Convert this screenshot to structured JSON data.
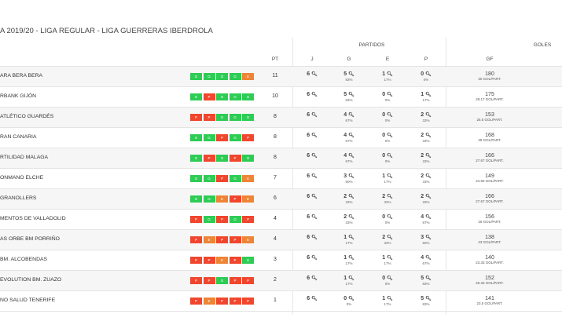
{
  "title": "A 2019/20 - LIGA REGULAR - LIGA GUERRERAS IBERDROLA",
  "headers": {
    "pt": "PT",
    "partidos": "PARTIDOS",
    "goles": "GOLES",
    "j": "J",
    "g": "G",
    "e": "E",
    "p": "P",
    "gf": "GF"
  },
  "colors": {
    "G": "#2ecc55",
    "P": "#f0462d",
    "E": "#ee8435"
  },
  "rows": [
    {
      "team": "ARA BERA BERA",
      "form": [
        "G",
        "G",
        "G",
        "G",
        "E"
      ],
      "pt": "11",
      "j": "6",
      "g": "5",
      "gp": "83%",
      "e": "1",
      "ep": "17%",
      "p": "0",
      "pp": "0%",
      "gf": "180",
      "gfs": "30 GOL/PART."
    },
    {
      "team": "RBANK GIJÓN",
      "form": [
        "G",
        "P",
        "G",
        "G",
        "G"
      ],
      "pt": "10",
      "j": "6",
      "g": "5",
      "gp": "83%",
      "e": "0",
      "ep": "0%",
      "p": "1",
      "pp": "17%",
      "gf": "175",
      "gfs": "29.17 GOL/PART."
    },
    {
      "team": "ATLÉTICO GUARDÉS",
      "form": [
        "P",
        "P",
        "G",
        "G",
        "G"
      ],
      "pt": "8",
      "j": "6",
      "g": "4",
      "gp": "67%",
      "e": "0",
      "ep": "0%",
      "p": "2",
      "pp": "33%",
      "gf": "153",
      "gfs": "25.5 GOL/PART."
    },
    {
      "team": "RAN CANARIA",
      "form": [
        "G",
        "G",
        "P",
        "G",
        "P"
      ],
      "pt": "8",
      "j": "6",
      "g": "4",
      "gp": "67%",
      "e": "0",
      "ep": "0%",
      "p": "2",
      "pp": "33%",
      "gf": "168",
      "gfs": "28 GOL/PART."
    },
    {
      "team": "RTILIDAD MALAGA",
      "form": [
        "G",
        "P",
        "G",
        "P",
        "G"
      ],
      "pt": "8",
      "j": "6",
      "g": "4",
      "gp": "67%",
      "e": "0",
      "ep": "0%",
      "p": "2",
      "pp": "33%",
      "gf": "166",
      "gfs": "27.67 GOL/PART."
    },
    {
      "team": "ONMANO ELCHE",
      "form": [
        "G",
        "G",
        "P",
        "G",
        "E"
      ],
      "pt": "7",
      "j": "6",
      "g": "3",
      "gp": "50%",
      "e": "1",
      "ep": "17%",
      "p": "2",
      "pp": "33%",
      "gf": "149",
      "gfs": "24.83 GOL/PART."
    },
    {
      "team": "GRANOLLERS",
      "form": [
        "G",
        "G",
        "E",
        "P",
        "E"
      ],
      "pt": "6",
      "j": "6",
      "g": "2",
      "gp": "33%",
      "e": "2",
      "ep": "33%",
      "p": "2",
      "pp": "33%",
      "gf": "166",
      "gfs": "27.67 GOL/PART."
    },
    {
      "team": "MENTOS DE VALLADOLID",
      "form": [
        "P",
        "G",
        "P",
        "G",
        "P"
      ],
      "pt": "4",
      "j": "6",
      "g": "2",
      "gp": "33%",
      "e": "0",
      "ep": "0%",
      "p": "4",
      "pp": "67%",
      "gf": "156",
      "gfs": "26 GOL/PART."
    },
    {
      "team": "AS ORBE BM PORRIÑO",
      "form": [
        "P",
        "E",
        "P",
        "P",
        "E"
      ],
      "pt": "4",
      "j": "6",
      "g": "1",
      "gp": "17%",
      "e": "2",
      "ep": "33%",
      "p": "3",
      "pp": "50%",
      "gf": "138",
      "gfs": "23 GOL/PART."
    },
    {
      "team": "BM. ALCOBENDAS",
      "form": [
        "P",
        "P",
        "E",
        "P",
        "G"
      ],
      "pt": "3",
      "j": "6",
      "g": "1",
      "gp": "17%",
      "e": "1",
      "ep": "17%",
      "p": "4",
      "pp": "67%",
      "gf": "140",
      "gfs": "23.33 GOL/PART."
    },
    {
      "team": "EVOLUTION BM. ZUAZO",
      "form": [
        "P",
        "P",
        "G",
        "P",
        "P"
      ],
      "pt": "2",
      "j": "6",
      "g": "1",
      "gp": "17%",
      "e": "0",
      "ep": "0%",
      "p": "5",
      "pp": "83%",
      "gf": "152",
      "gfs": "25.33 GOL/PART."
    },
    {
      "team": "NO SALUD TENERIFE",
      "form": [
        "P",
        "E",
        "P",
        "P",
        "P"
      ],
      "pt": "1",
      "j": "6",
      "g": "0",
      "gp": "0%",
      "e": "1",
      "ep": "17%",
      "p": "5",
      "pp": "83%",
      "gf": "141",
      "gfs": "23.5 GOL/PART."
    }
  ]
}
